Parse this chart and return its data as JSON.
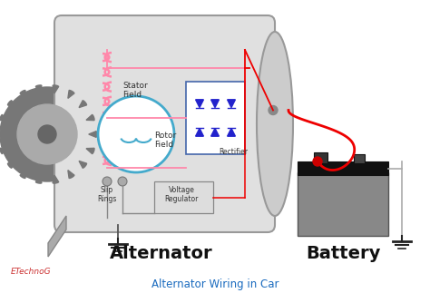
{
  "bg_color": "#ffffff",
  "title": "Alternator Wiring in Car",
  "title_color": "#1a6bbf",
  "title_fontsize": 8.5,
  "watermark": "ETechnoG",
  "watermark_color": "#cc3333",
  "alternator_label": "Alternator",
  "battery_label": "Battery",
  "stator_label": "Stator\nField",
  "rotor_label": "Rotor\nField",
  "rectifier_label": "Rectifier",
  "voltage_reg_label": "Voltage\nRegulator",
  "slip_rings_label": "Slip\nRings",
  "alternator_body_color": "#e0e0e0",
  "alternator_body_edge": "#999999",
  "rotor_color": "#44aacc",
  "stator_color_coil": "#ff88aa",
  "wire_red": "#ee0000",
  "wire_pink": "#ff88aa",
  "wire_blue": "#2222cc",
  "wire_black": "#333333",
  "wire_gray": "#888888",
  "diode_color": "#2222cc",
  "battery_body": "#888888",
  "battery_top": "#111111",
  "battery_terminal": "#aaaaaa",
  "ground_color": "#222222",
  "pulley_color": "#777777",
  "pulley_inner": "#aaaaaa",
  "rect_box_edge": "#4466aa",
  "vr_box_color": "#dddddd",
  "vr_box_edge": "#888888",
  "connection_dot_red": "#cc0000",
  "alt_ground_wire_color": "#555555"
}
